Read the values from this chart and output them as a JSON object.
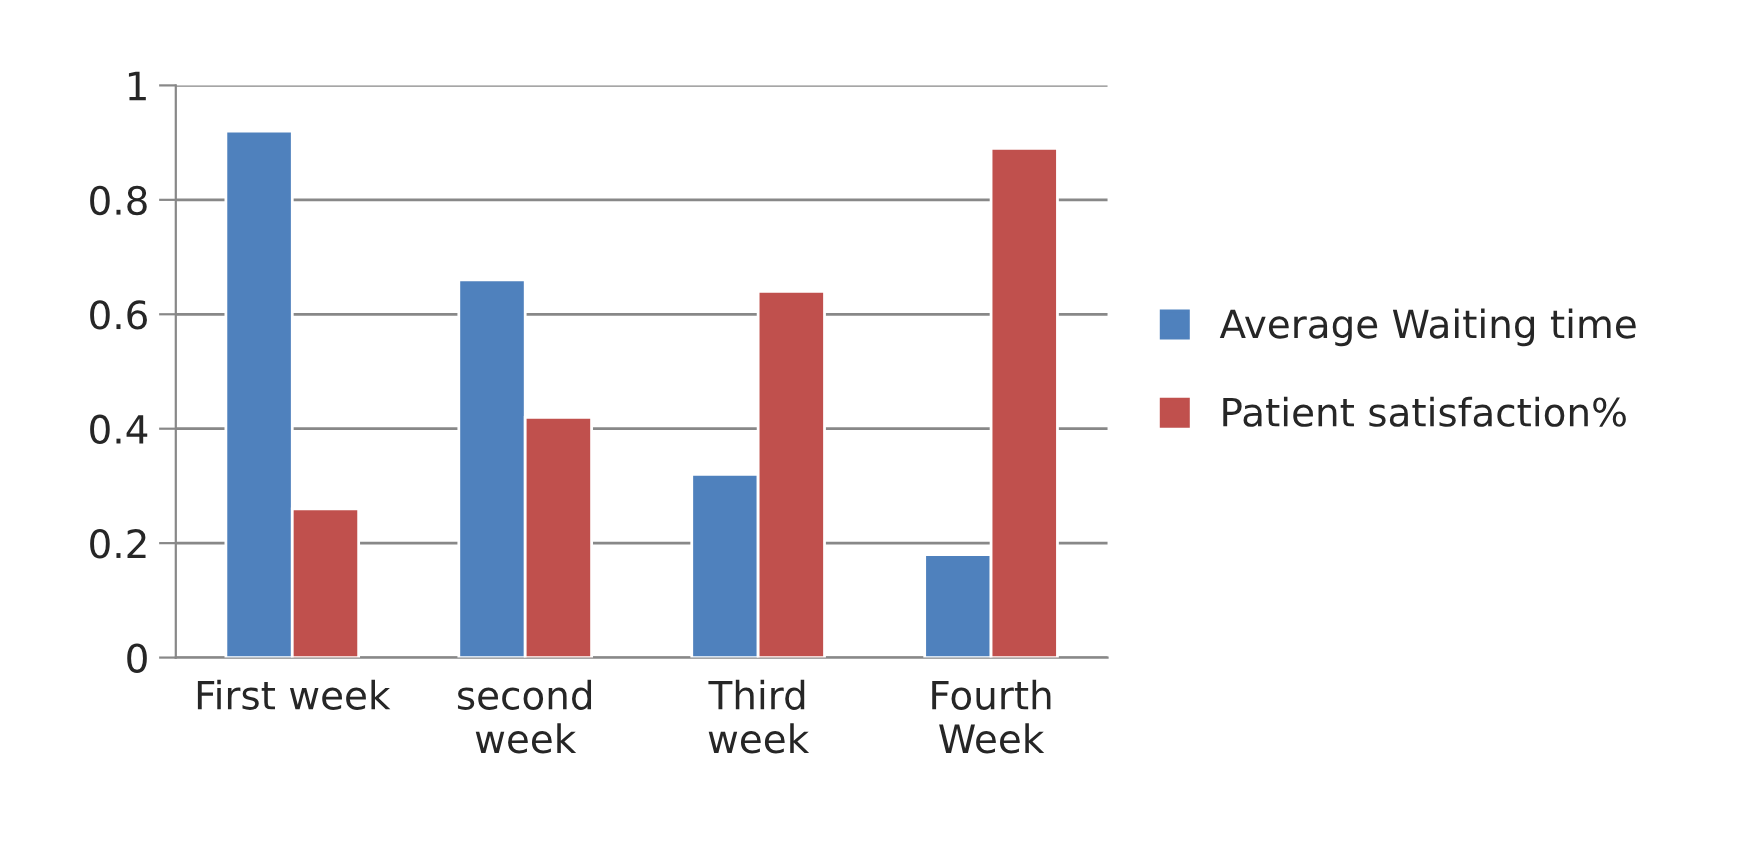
{
  "chart_data": {
    "type": "bar",
    "categories": [
      "First week",
      "second\nweek",
      "Third\nweek",
      "Fourth\nWeek"
    ],
    "series": [
      {
        "name": "Average Waiting time",
        "color": "#4f81bd",
        "values": [
          0.92,
          0.66,
          0.32,
          0.18
        ]
      },
      {
        "name": "Patient satisfaction%",
        "color": "#c0504d",
        "values": [
          0.26,
          0.42,
          0.64,
          0.89
        ]
      }
    ],
    "ylim": [
      0,
      1
    ],
    "yticks": [
      0,
      0.2,
      0.4,
      0.6,
      0.8,
      1
    ],
    "grid": "y",
    "legend": "right"
  }
}
